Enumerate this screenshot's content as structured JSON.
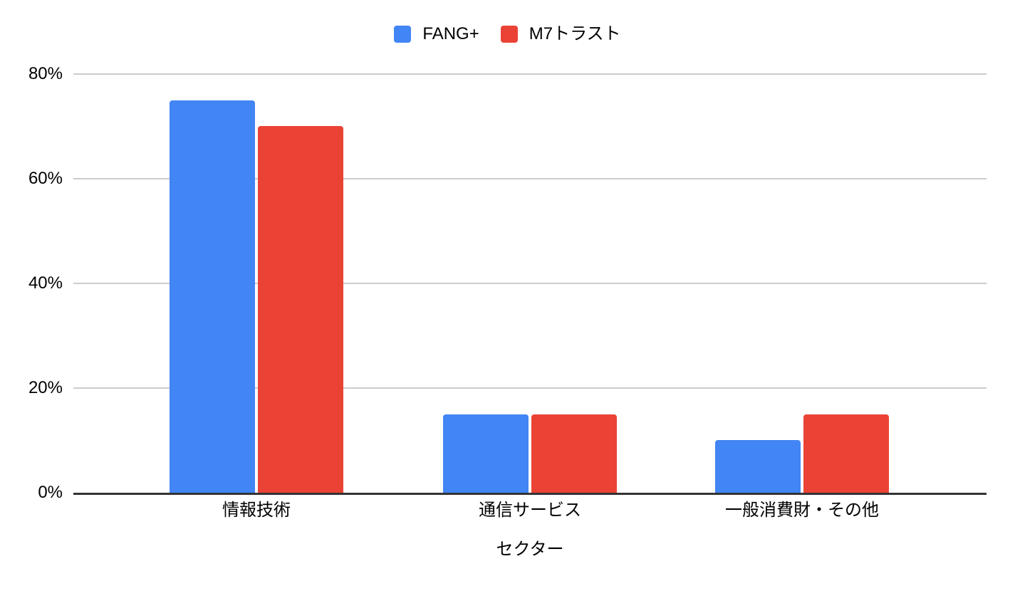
{
  "chart_data": {
    "type": "bar",
    "title": "",
    "categories": [
      "情報技術",
      "通信サービス",
      "一般消費財・その他"
    ],
    "series": [
      {
        "name": "FANG+",
        "color": "#4285f4",
        "values": [
          75,
          15,
          10
        ]
      },
      {
        "name": "M7トラスト",
        "color": "#ea4335",
        "values": [
          70,
          15,
          15
        ]
      }
    ],
    "xlabel": "セクター",
    "ylabel": "",
    "yticks": [
      0,
      20,
      40,
      60,
      80
    ],
    "ytick_suffix": "%",
    "ylim": [
      0,
      80
    ],
    "grid": true,
    "legend_position": "top",
    "colors": {
      "gridline": "#cccccc",
      "axis_line": "#333333",
      "text": "#000000",
      "background": "#ffffff"
    }
  }
}
